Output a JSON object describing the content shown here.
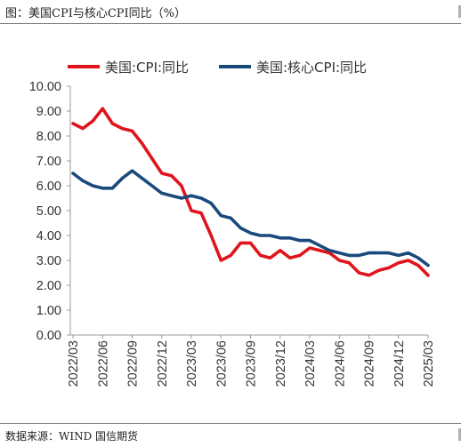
{
  "header": {
    "title": "图：美国CPI与核心CPI同比（%）"
  },
  "footer": {
    "source": "数据来源：WIND 国信期货"
  },
  "colors": {
    "cpi": "#e0141c",
    "core": "#1a4a7c",
    "axis": "#999999"
  },
  "chart_data": {
    "type": "line",
    "title": "",
    "xlabel": "",
    "ylabel": "",
    "ylim": [
      0,
      10
    ],
    "yticks": [
      "0.00",
      "1.00",
      "2.00",
      "3.00",
      "4.00",
      "5.00",
      "6.00",
      "7.00",
      "8.00",
      "9.00",
      "10.00"
    ],
    "grid": false,
    "legend_position": "top",
    "x_tick_labels": [
      "2022/03",
      "2022/06",
      "2022/09",
      "2022/12",
      "2023/03",
      "2023/06",
      "2023/09",
      "2023/12",
      "2024/03",
      "2024/06",
      "2024/09",
      "2024/12",
      "2025/03"
    ],
    "x": [
      "2022/03",
      "2022/04",
      "2022/05",
      "2022/06",
      "2022/07",
      "2022/08",
      "2022/09",
      "2022/10",
      "2022/11",
      "2022/12",
      "2023/01",
      "2023/02",
      "2023/03",
      "2023/04",
      "2023/05",
      "2023/06",
      "2023/07",
      "2023/08",
      "2023/09",
      "2023/10",
      "2023/11",
      "2023/12",
      "2024/01",
      "2024/02",
      "2024/03",
      "2024/04",
      "2024/05",
      "2024/06",
      "2024/07",
      "2024/08",
      "2024/09",
      "2024/10",
      "2024/11",
      "2024/12",
      "2025/01",
      "2025/02",
      "2025/03"
    ],
    "series": [
      {
        "name": "美国:CPI:同比",
        "color_key": "cpi",
        "values": [
          8.5,
          8.3,
          8.6,
          9.1,
          8.5,
          8.3,
          8.2,
          7.7,
          7.1,
          6.5,
          6.4,
          6.0,
          5.0,
          4.9,
          4.0,
          3.0,
          3.2,
          3.7,
          3.7,
          3.2,
          3.1,
          3.4,
          3.1,
          3.2,
          3.5,
          3.4,
          3.3,
          3.0,
          2.9,
          2.5,
          2.4,
          2.6,
          2.7,
          2.9,
          3.0,
          2.8,
          2.4
        ]
      },
      {
        "name": "美国:核心CPI:同比",
        "color_key": "core",
        "values": [
          6.5,
          6.2,
          6.0,
          5.9,
          5.9,
          6.3,
          6.6,
          6.3,
          6.0,
          5.7,
          5.6,
          5.5,
          5.6,
          5.5,
          5.3,
          4.8,
          4.7,
          4.3,
          4.1,
          4.0,
          4.0,
          3.9,
          3.9,
          3.8,
          3.8,
          3.6,
          3.4,
          3.3,
          3.2,
          3.2,
          3.3,
          3.3,
          3.3,
          3.2,
          3.3,
          3.1,
          2.8
        ]
      }
    ]
  }
}
